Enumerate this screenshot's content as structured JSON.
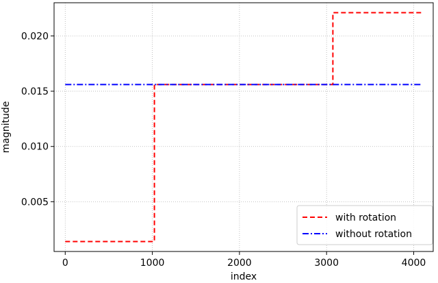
{
  "chart_data": {
    "type": "line",
    "step": true,
    "xlabel": "index",
    "ylabel": "magnitude",
    "xlim": [
      -128,
      4224
    ],
    "ylim": [
      0.0005,
      0.023
    ],
    "xticks": [
      0,
      1000,
      2000,
      3000,
      4000
    ],
    "yticks": [
      0.005,
      0.01,
      0.015,
      0.02
    ],
    "ytick_labels": [
      "0.005",
      "0.010",
      "0.015",
      "0.020"
    ],
    "grid": true,
    "legend_position": "lower-right",
    "series": [
      {
        "name": "with rotation",
        "color": "#ff0000",
        "dash": "dashed",
        "x": [
          0,
          1024,
          1024,
          3072,
          3072,
          4096
        ],
        "y": [
          0.0014,
          0.0014,
          0.0156,
          0.0156,
          0.0221,
          0.0221
        ]
      },
      {
        "name": "without rotation",
        "color": "#0000ff",
        "dash": "dashdot",
        "x": [
          0,
          4096
        ],
        "y": [
          0.0156,
          0.0156
        ]
      }
    ]
  }
}
